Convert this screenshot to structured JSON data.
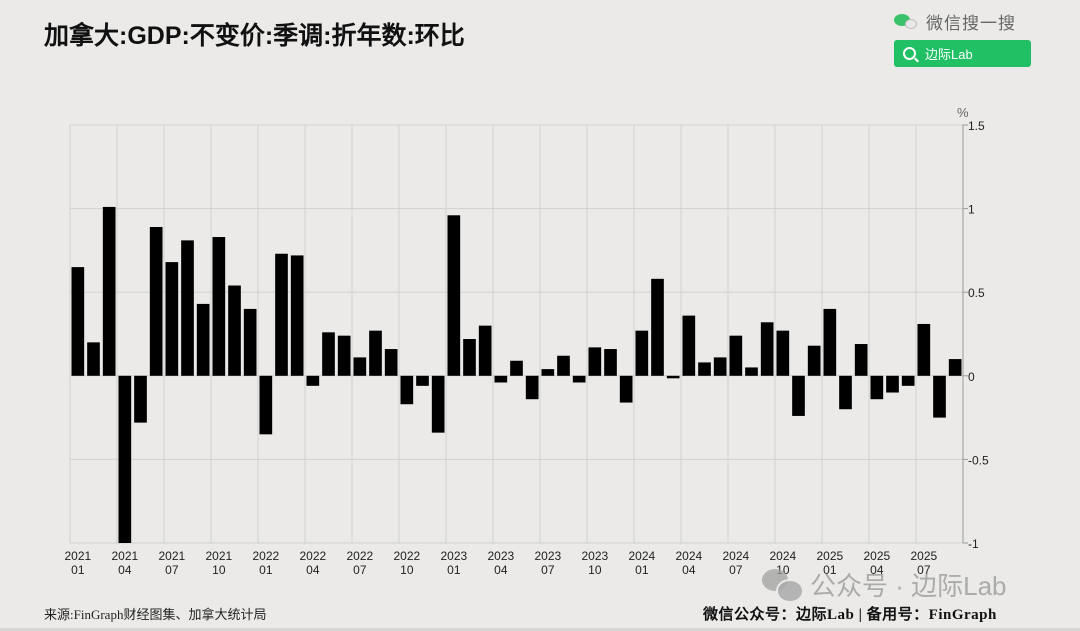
{
  "header": {
    "title": "加拿大:GDP:不变价:季调:折年数:环比"
  },
  "wechat_search": {
    "label": "微信搜一搜",
    "button_text": "边际Lab",
    "button_color": "#21c064"
  },
  "footer": {
    "source": "来源:FinGraph财经图集、加拿大统计局",
    "account": "微信公众号：边际Lab  |  备用号：FinGraph"
  },
  "watermark": {
    "text": "公众号 · 边际Lab"
  },
  "chart_data": {
    "type": "bar",
    "title": "加拿大:GDP:不变价:季调:折年数:环比",
    "xlabel": "",
    "ylabel": "%",
    "ylim": [
      -1,
      1.5
    ],
    "yticks": [
      1.5,
      1,
      0.5,
      0,
      -0.5,
      -1
    ],
    "ytick_labels": [
      "1.5",
      "1",
      "0.5",
      "0",
      "-0.5",
      "-1"
    ],
    "y_axis_position": "right",
    "grid": true,
    "bar_color": "#000000",
    "x_tick_labels": [
      [
        "2021",
        "01"
      ],
      [
        "2021",
        "04"
      ],
      [
        "2021",
        "07"
      ],
      [
        "2021",
        "10"
      ],
      [
        "2022",
        "01"
      ],
      [
        "2022",
        "04"
      ],
      [
        "2022",
        "07"
      ],
      [
        "2022",
        "10"
      ],
      [
        "2023",
        "01"
      ],
      [
        "2023",
        "04"
      ],
      [
        "2023",
        "07"
      ],
      [
        "2023",
        "10"
      ],
      [
        "2024",
        "01"
      ],
      [
        "2024",
        "04"
      ],
      [
        "2024",
        "07"
      ],
      [
        "2024",
        "10"
      ],
      [
        "2025",
        "01"
      ],
      [
        "2025",
        "04"
      ],
      [
        "2025",
        "07"
      ]
    ],
    "categories": [
      "2021-01",
      "2021-02",
      "2021-03",
      "2021-04",
      "2021-05",
      "2021-06",
      "2021-07",
      "2021-08",
      "2021-09",
      "2021-10",
      "2021-11",
      "2021-12",
      "2022-01",
      "2022-02",
      "2022-03",
      "2022-04",
      "2022-05",
      "2022-06",
      "2022-07",
      "2022-08",
      "2022-09",
      "2022-10",
      "2022-11",
      "2022-12",
      "2023-01",
      "2023-02",
      "2023-03",
      "2023-04",
      "2023-05",
      "2023-06",
      "2023-07",
      "2023-08",
      "2023-09",
      "2023-10",
      "2023-11",
      "2023-12",
      "2024-01",
      "2024-02",
      "2024-03",
      "2024-04",
      "2024-05",
      "2024-06",
      "2024-07",
      "2024-08",
      "2024-09",
      "2024-10",
      "2024-11",
      "2024-12",
      "2025-01",
      "2025-02",
      "2025-03",
      "2025-04",
      "2025-05",
      "2025-06",
      "2025-07",
      "2025-08",
      "2025-09"
    ],
    "values": [
      0.65,
      0.2,
      1.01,
      -1.0,
      -0.28,
      0.89,
      0.68,
      0.81,
      0.43,
      0.83,
      0.54,
      0.4,
      -0.35,
      0.73,
      0.72,
      -0.06,
      0.26,
      0.24,
      0.11,
      0.27,
      0.16,
      -0.17,
      -0.06,
      -0.34,
      0.96,
      0.22,
      0.3,
      -0.04,
      0.09,
      -0.14,
      0.04,
      0.12,
      -0.04,
      0.17,
      0.16,
      -0.16,
      0.27,
      0.58,
      -0.015,
      0.36,
      0.08,
      0.11,
      0.24,
      0.05,
      0.32,
      0.27,
      -0.24,
      0.18,
      0.4,
      -0.2,
      0.19,
      -0.14,
      -0.1,
      -0.06,
      0.31,
      -0.25,
      0.1
    ]
  }
}
